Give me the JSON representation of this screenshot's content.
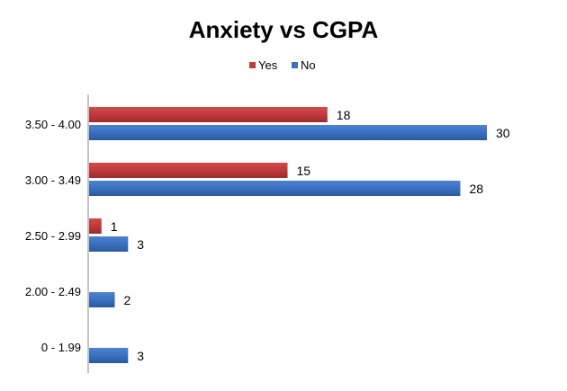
{
  "chart_data": {
    "type": "bar",
    "orientation": "horizontal",
    "title": "Anxiety vs CGPA",
    "categories": [
      "3.50 - 4.00",
      "3.00 - 3.49",
      "2.50 - 2.99",
      "2.00 - 2.49",
      "0 - 1.99"
    ],
    "series": [
      {
        "name": "Yes",
        "color": "#C0393B",
        "values": [
          18,
          15,
          1,
          0,
          0
        ]
      },
      {
        "name": "No",
        "color": "#3A70BF",
        "values": [
          30,
          28,
          3,
          2,
          3
        ]
      }
    ],
    "xlim": [
      0,
      30
    ],
    "grid": false,
    "legend": "top-center",
    "data_labels": true
  }
}
